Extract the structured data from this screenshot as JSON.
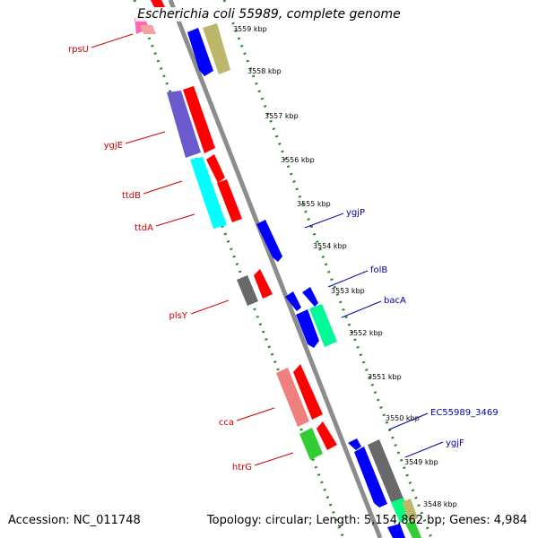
{
  "title": "Escherichia coli 55989, complete genome",
  "footer": {
    "accession": "Accession: NC_011748",
    "topology": "Topology: circular; Length: 5,154,862 bp; Genes: 4,984"
  },
  "colors": {
    "backbone": "#8c8c8c",
    "tick_mark": "#228b22",
    "left_label": "#cc0000",
    "right_label": "#0000aa"
  },
  "ticks": [
    "3559 kbp",
    "3558 kbp",
    "3557 kbp",
    "3556 kbp",
    "3555 kbp",
    "3554 kbp",
    "3553 kbp",
    "3552 kbp",
    "3551 kbp",
    "3550 kbp",
    "3549 kbp",
    "3548 kbp"
  ],
  "genes_left": [
    "rpsU",
    "ygjE",
    "ttdB",
    "ttdA",
    "plsY",
    "cca",
    "htrG"
  ],
  "genes_right": [
    "ygjP",
    "folB",
    "bacA",
    "EC55989_3469",
    "ygjF"
  ]
}
